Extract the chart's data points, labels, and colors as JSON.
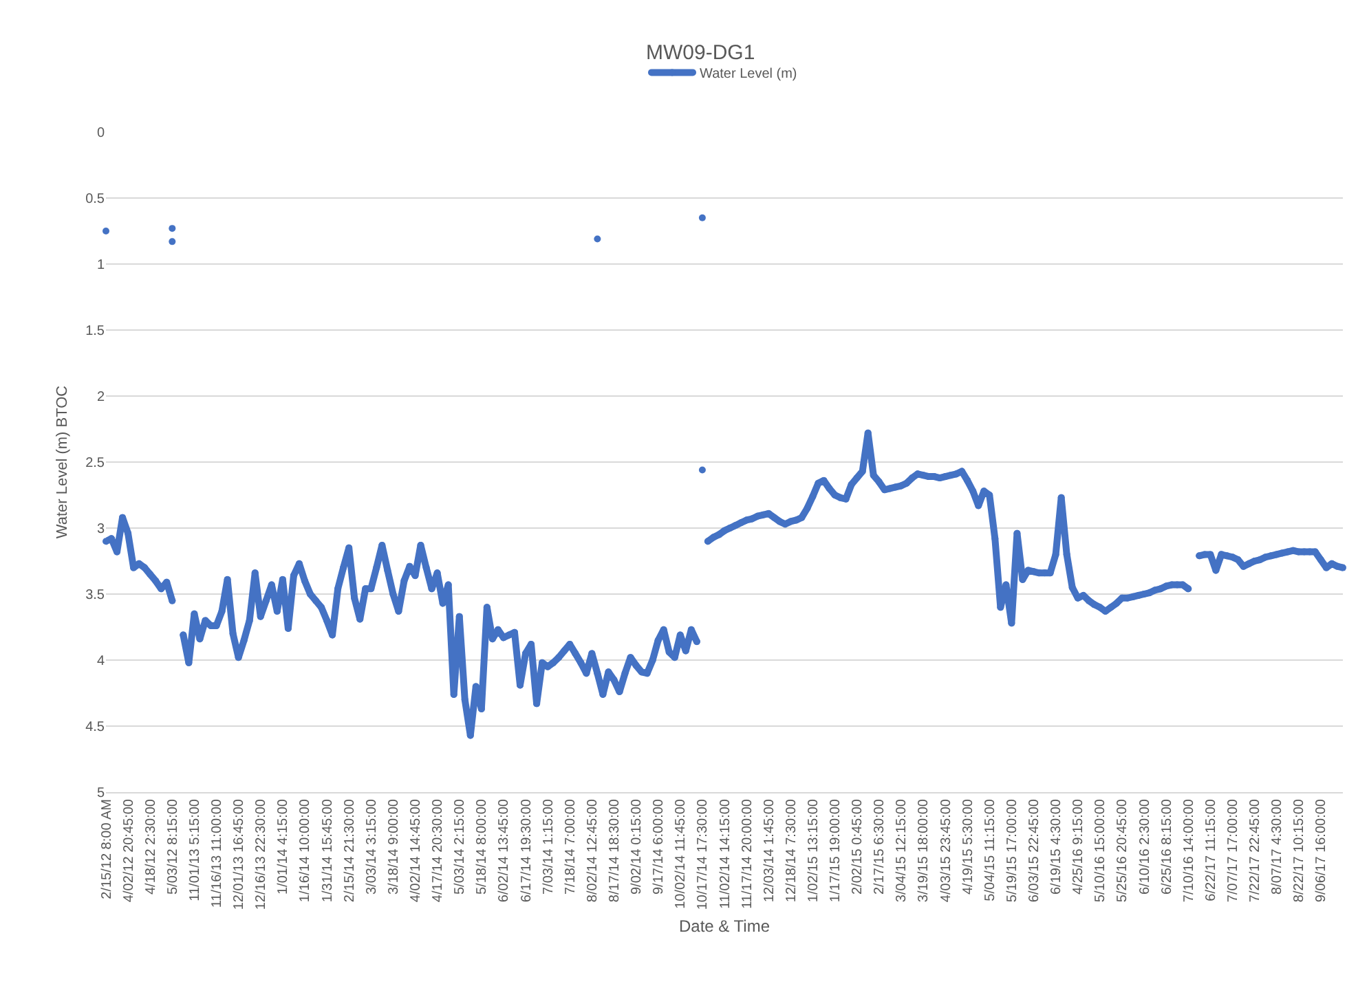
{
  "chart_data": {
    "type": "line",
    "title": "MW09-DG1",
    "xlabel": "Date & Time",
    "ylabel": "Water Level (m) BTOC",
    "ylim": [
      5,
      0
    ],
    "yticks": [
      0,
      0.5,
      1,
      1.5,
      2,
      2.5,
      3,
      3.5,
      4,
      4.5,
      5
    ],
    "categories": [
      "2/15/12 8:00 AM",
      null,
      null,
      null,
      "4/02/12 20:45:00",
      null,
      null,
      null,
      "4/18/12 2:30:00",
      null,
      null,
      null,
      "5/03/12 8:15:00",
      null,
      null,
      null,
      "11/01/13 5:15:00",
      null,
      null,
      null,
      "11/16/13 11:00:00",
      null,
      null,
      null,
      "12/01/13 16:45:00",
      null,
      null,
      null,
      "12/16/13 22:30:00",
      null,
      null,
      null,
      "1/01/14 4:15:00",
      null,
      null,
      null,
      "1/16/14 10:00:00",
      null,
      null,
      null,
      "1/31/14 15:45:00",
      null,
      null,
      null,
      "2/15/14 21:30:00",
      null,
      null,
      null,
      "3/03/14 3:15:00",
      null,
      null,
      null,
      "3/18/14 9:00:00",
      null,
      null,
      null,
      "4/02/14 14:45:00",
      null,
      null,
      null,
      "4/17/14 20:30:00",
      null,
      null,
      null,
      "5/03/14 2:15:00",
      null,
      null,
      null,
      "5/18/14 8:00:00",
      null,
      null,
      null,
      "6/02/14 13:45:00",
      null,
      null,
      null,
      "6/17/14 19:30:00",
      null,
      null,
      null,
      "7/03/14 1:15:00",
      null,
      null,
      null,
      "7/18/14 7:00:00",
      null,
      null,
      null,
      "8/02/14 12:45:00",
      null,
      null,
      null,
      "8/17/14 18:30:00",
      null,
      null,
      null,
      "9/02/14 0:15:00",
      null,
      null,
      null,
      "9/17/14 6:00:00",
      null,
      null,
      null,
      "10/02/14 11:45:00",
      null,
      null,
      null,
      "10/17/14 17:30:00",
      null,
      null,
      null,
      "11/02/14 14:15:00",
      null,
      null,
      null,
      "11/17/14 20:00:00",
      null,
      null,
      null,
      "12/03/14 1:45:00",
      null,
      null,
      null,
      "12/18/14 7:30:00",
      null,
      null,
      null,
      "1/02/15 13:15:00",
      null,
      null,
      null,
      "1/17/15 19:00:00",
      null,
      null,
      null,
      "2/02/15 0:45:00",
      null,
      null,
      null,
      "2/17/15 6:30:00",
      null,
      null,
      null,
      "3/04/15 12:15:00",
      null,
      null,
      null,
      "3/19/15 18:00:00",
      null,
      null,
      null,
      "4/03/15 23:45:00",
      null,
      null,
      null,
      "4/19/15 5:30:00",
      null,
      null,
      null,
      "5/04/15 11:15:00",
      null,
      null,
      null,
      "5/19/15 17:00:00",
      null,
      null,
      null,
      "6/03/15 22:45:00",
      null,
      null,
      null,
      "6/19/15 4:30:00",
      null,
      null,
      null,
      "4/25/16 9:15:00",
      null,
      null,
      null,
      "5/10/16 15:00:00",
      null,
      null,
      null,
      "5/25/16 20:45:00",
      null,
      null,
      null,
      "6/10/16 2:30:00",
      null,
      null,
      null,
      "6/25/16 8:15:00",
      null,
      null,
      null,
      "7/10/16 14:00:00",
      null,
      null,
      null,
      "6/22/17 11:15:00",
      null,
      null,
      null,
      "7/07/17 17:00:00",
      null,
      null,
      null,
      "7/22/17 22:45:00",
      null,
      null,
      null,
      "8/07/17 4:30:00",
      null,
      null,
      null,
      "8/22/17 10:15:00",
      null,
      null,
      null,
      "9/06/17 16:00:00",
      null,
      null,
      null,
      null
    ],
    "grid": "y",
    "legend": "top",
    "marker": "circle",
    "line_style": "solid",
    "series": [
      {
        "name": "Water Level (m)",
        "color": "#4472c4",
        "values": [
          3.1,
          3.08,
          3.18,
          2.92,
          3.04,
          3.3,
          3.27,
          3.3,
          3.35,
          3.4,
          3.46,
          3.41,
          3.55,
          null,
          3.81,
          4.02,
          3.65,
          3.84,
          3.7,
          3.74,
          3.74,
          3.63,
          3.39,
          3.8,
          3.98,
          3.85,
          3.7,
          3.34,
          3.67,
          3.55,
          3.43,
          3.63,
          3.39,
          3.76,
          3.36,
          3.27,
          3.4,
          3.5,
          3.55,
          3.6,
          3.7,
          3.81,
          3.46,
          3.3,
          3.15,
          3.53,
          3.69,
          3.46,
          3.46,
          3.3,
          3.13,
          3.32,
          3.5,
          3.63,
          3.4,
          3.29,
          3.36,
          3.13,
          3.3,
          3.46,
          3.34,
          3.57,
          3.43,
          4.26,
          3.67,
          4.3,
          4.57,
          4.2,
          4.37,
          3.6,
          3.84,
          3.77,
          3.83,
          3.81,
          3.79,
          4.19,
          3.95,
          3.88,
          4.33,
          4.02,
          4.05,
          4.02,
          3.98,
          3.93,
          3.88,
          3.95,
          4.02,
          4.1,
          3.95,
          4.1,
          4.26,
          4.09,
          4.15,
          4.24,
          4.1,
          3.98,
          4.04,
          4.09,
          4.1,
          4.0,
          3.85,
          3.77,
          3.94,
          3.98,
          3.81,
          3.93,
          3.77,
          3.86,
          null,
          3.1,
          3.07,
          3.05,
          3.02,
          3.0,
          2.98,
          2.96,
          2.94,
          2.93,
          2.91,
          2.9,
          2.89,
          2.92,
          2.95,
          2.97,
          2.95,
          2.94,
          2.92,
          2.85,
          2.76,
          2.66,
          2.64,
          2.7,
          2.75,
          2.77,
          2.78,
          2.67,
          2.62,
          2.57,
          2.28,
          2.6,
          2.65,
          2.71,
          2.7,
          2.69,
          2.68,
          2.66,
          2.62,
          2.59,
          2.6,
          2.61,
          2.61,
          2.62,
          2.61,
          2.6,
          2.59,
          2.57,
          2.64,
          2.72,
          2.83,
          2.72,
          2.75,
          3.08,
          3.6,
          3.43,
          3.72,
          3.04,
          3.39,
          3.32,
          3.33,
          3.34,
          3.34,
          3.34,
          3.2,
          2.77,
          3.2,
          3.45,
          3.53,
          3.51,
          3.55,
          3.58,
          3.6,
          3.63,
          3.6,
          3.57,
          3.53,
          3.53,
          3.52,
          3.51,
          3.5,
          3.49,
          3.47,
          3.46,
          3.44,
          3.43,
          3.43,
          3.43,
          3.46,
          null,
          3.21,
          3.2,
          3.2,
          3.32,
          3.2,
          3.21,
          3.22,
          3.24,
          3.29,
          3.27,
          3.25,
          3.24,
          3.22,
          3.21,
          3.2,
          3.19,
          3.18,
          3.17,
          3.18,
          3.18,
          3.18,
          3.18,
          3.24,
          3.3,
          3.27,
          3.29,
          3.3
        ]
      },
      {
        "type": "scatter",
        "color": "#4472c4",
        "values": [
          0.75,
          null,
          null,
          null,
          null,
          null,
          null,
          null,
          null,
          null,
          null,
          null,
          0.73,
          null,
          null,
          null,
          null,
          null,
          null,
          null,
          null,
          null,
          null,
          null,
          null,
          null,
          null,
          null,
          null,
          null,
          null,
          null,
          null,
          null,
          null,
          null,
          null,
          null,
          null,
          null,
          null,
          null,
          null,
          null,
          null,
          null,
          null,
          null,
          null,
          null,
          null,
          null,
          null,
          null,
          null,
          null,
          null,
          null,
          null,
          null,
          null,
          null,
          null,
          null,
          null,
          null,
          null,
          null,
          null,
          null,
          null,
          null,
          null,
          null,
          null,
          null,
          null,
          null,
          null,
          null,
          null,
          null,
          null,
          null,
          null,
          null,
          null,
          null,
          null,
          0.81,
          null,
          null,
          null,
          null,
          null,
          null,
          null,
          null,
          null,
          null,
          null,
          null,
          null,
          null,
          null,
          null,
          null,
          null,
          0.65,
          null,
          null,
          null,
          null,
          null,
          null,
          null,
          null,
          null,
          null,
          null,
          null,
          null,
          null,
          null,
          null,
          null,
          null,
          null,
          null,
          null,
          null,
          null,
          null,
          null,
          null,
          null,
          null,
          null,
          null,
          null,
          null,
          null,
          null,
          null,
          null,
          null,
          null,
          null,
          null,
          null,
          null,
          null,
          null,
          null,
          null,
          null,
          null,
          null,
          null,
          null,
          null,
          null,
          null,
          null,
          null,
          null,
          null,
          null,
          null,
          null,
          null,
          null,
          null,
          null,
          null,
          null,
          null,
          null,
          null,
          null,
          null,
          null,
          null,
          null,
          null,
          null,
          null,
          null,
          null,
          null,
          null,
          null,
          null,
          null,
          null,
          null,
          null,
          null,
          null,
          null,
          null,
          null,
          null,
          null,
          null,
          null,
          null,
          null,
          null,
          null,
          null,
          null,
          null,
          null,
          null,
          null,
          null,
          null,
          null,
          null,
          null,
          null,
          null,
          null,
          null
        ]
      },
      {
        "type": "scatter",
        "color": "#4472c4",
        "values": [
          null,
          null,
          null,
          null,
          null,
          null,
          null,
          null,
          null,
          null,
          null,
          null,
          0.83,
          null,
          null,
          null,
          null,
          null,
          null,
          null,
          null,
          null,
          null,
          null,
          null,
          null,
          null,
          null,
          null,
          null,
          null,
          null,
          null,
          null,
          null,
          null,
          null,
          null,
          null,
          null,
          null,
          null,
          null,
          null,
          null,
          null,
          null,
          null,
          null,
          null,
          null,
          null,
          null,
          null,
          null,
          null,
          null,
          null,
          null,
          null,
          null,
          null,
          null,
          null,
          null,
          null,
          null,
          null,
          null,
          null,
          null,
          null,
          null,
          null,
          null,
          null,
          null,
          null,
          null,
          null,
          null,
          null,
          null,
          null,
          null,
          null,
          null,
          null,
          null,
          null,
          null,
          null,
          null,
          null,
          null,
          null,
          null,
          null,
          null,
          null,
          null,
          null,
          null,
          null,
          null,
          null,
          null,
          null,
          2.56,
          null,
          null,
          null,
          null,
          null,
          null,
          null,
          null,
          null,
          null,
          null,
          null,
          null,
          null,
          null,
          null,
          null,
          null,
          null,
          null,
          null,
          null,
          null,
          null,
          null,
          null,
          null,
          null,
          null,
          null,
          null,
          null,
          null,
          null,
          null,
          null,
          null,
          null,
          null,
          null,
          null,
          null,
          null,
          null,
          null,
          null,
          null,
          null,
          null,
          null,
          null,
          null,
          null,
          null,
          null,
          null,
          null,
          null,
          null,
          null,
          null,
          null,
          null,
          null,
          null,
          null,
          null,
          null,
          null,
          null,
          null,
          null,
          null,
          null,
          null,
          null,
          null,
          null,
          null,
          null,
          null,
          null,
          null,
          null,
          null,
          null,
          null,
          null,
          null,
          null,
          null,
          null,
          null,
          null,
          null,
          null,
          null,
          null,
          null,
          null,
          null,
          null,
          null,
          null,
          null,
          null,
          null,
          null,
          null,
          null,
          null,
          null,
          null,
          null,
          null,
          null
        ]
      }
    ]
  }
}
